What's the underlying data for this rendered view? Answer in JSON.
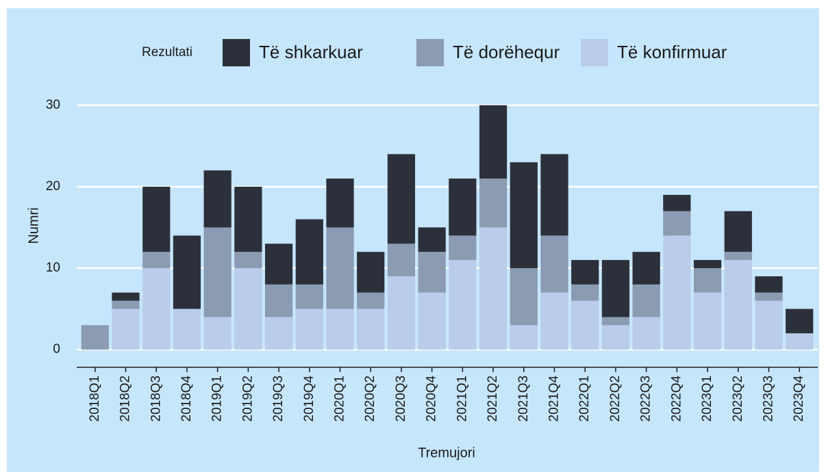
{
  "chart_data": {
    "type": "stacked_bar",
    "xlabel": "Tremujori",
    "ylabel": "Numri",
    "legend_title": "Rezultati",
    "legend": "top",
    "grid": true,
    "categories": [
      "2018Q1",
      "2018Q2",
      "2018Q3",
      "2018Q4",
      "2019Q1",
      "2019Q2",
      "2019Q3",
      "2019Q4",
      "2020Q1",
      "2020Q2",
      "2020Q3",
      "2020Q4",
      "2021Q1",
      "2021Q2",
      "2021Q3",
      "2021Q4",
      "2022Q1",
      "2022Q2",
      "2022Q3",
      "2022Q4",
      "2023Q1",
      "2023Q2",
      "2023Q3",
      "2023Q4"
    ],
    "series": [
      {
        "name": "Të shkarkuar",
        "color": "#2c303b",
        "values": [
          0,
          1,
          8,
          9,
          7,
          8,
          5,
          8,
          6,
          5,
          11,
          3,
          7,
          9,
          13,
          10,
          3,
          7,
          4,
          2,
          1,
          5,
          2,
          3
        ]
      },
      {
        "name": "Të dorëhequr",
        "color": "#8b9bb1",
        "values": [
          3,
          1,
          2,
          0,
          11,
          2,
          4,
          3,
          10,
          2,
          4,
          5,
          3,
          6,
          7,
          7,
          2,
          1,
          4,
          3,
          3,
          1,
          1,
          0
        ]
      },
      {
        "name": "Të konfirmuar",
        "color": "#b9cce9",
        "values": [
          0,
          5,
          10,
          5,
          4,
          10,
          4,
          5,
          5,
          5,
          9,
          7,
          11,
          15,
          3,
          7,
          6,
          3,
          4,
          14,
          7,
          11,
          6,
          2
        ]
      }
    ],
    "ylim": [
      -1.5,
      31.5
    ],
    "yticks": [
      0,
      10,
      20,
      30
    ]
  }
}
